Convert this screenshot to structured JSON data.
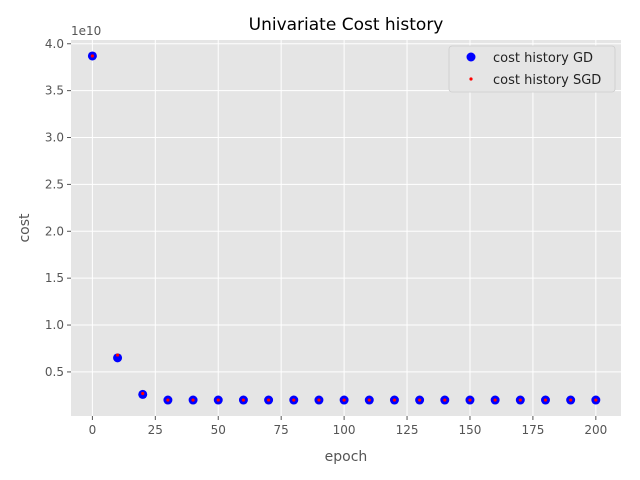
{
  "chart_data": {
    "type": "scatter",
    "title": "Univariate Cost history",
    "xlabel": "epoch",
    "ylabel": "cost",
    "y_offset_label": "1e10",
    "x_ticks": [
      "0",
      "25",
      "50",
      "75",
      "100",
      "125",
      "150",
      "175",
      "200"
    ],
    "y_ticks": [
      "0.5",
      "1.0",
      "1.5",
      "2.0",
      "2.5",
      "3.0",
      "3.5",
      "4.0"
    ],
    "xlim": [
      -8.5,
      210
    ],
    "ylim": [
      0.03,
      4.04
    ],
    "grid": true,
    "legend_position": "top-right",
    "series": [
      {
        "name": "cost history GD",
        "color": "#0000ff",
        "x": [
          0,
          10,
          20,
          30,
          40,
          50,
          60,
          70,
          80,
          90,
          100,
          110,
          120,
          130,
          140,
          150,
          160,
          170,
          180,
          190,
          200
        ],
        "y": [
          3.87,
          0.65,
          0.26,
          0.2,
          0.2,
          0.2,
          0.2,
          0.2,
          0.2,
          0.2,
          0.2,
          0.2,
          0.2,
          0.2,
          0.2,
          0.2,
          0.2,
          0.2,
          0.2,
          0.2,
          0.2
        ]
      },
      {
        "name": "cost history SGD",
        "color": "#ff0000",
        "x": [
          0,
          10,
          20,
          30,
          40,
          50,
          60,
          70,
          80,
          90,
          100,
          110,
          120,
          130,
          140,
          150,
          160,
          170,
          180,
          190,
          200
        ],
        "y": [
          3.87,
          0.68,
          0.27,
          0.2,
          0.2,
          0.2,
          0.2,
          0.2,
          0.2,
          0.2,
          0.2,
          0.2,
          0.2,
          0.2,
          0.2,
          0.2,
          0.2,
          0.2,
          0.2,
          0.2,
          0.2
        ]
      }
    ]
  }
}
